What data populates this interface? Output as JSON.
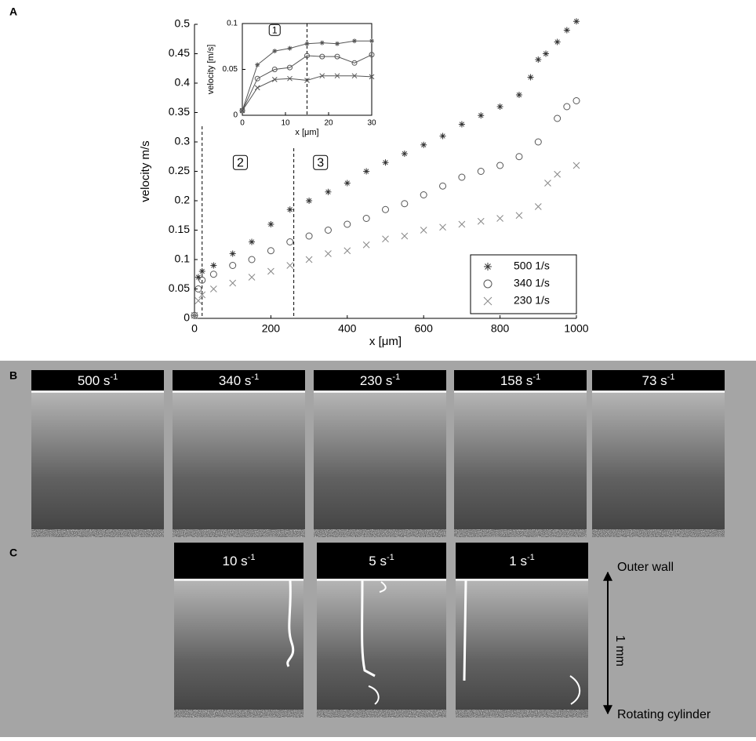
{
  "chart_data": [
    {
      "type": "scatter",
      "xlabel": "x [μm]",
      "ylabel": "velocity m/s",
      "xlim": [
        0,
        1000
      ],
      "ylim": [
        0,
        0.5
      ],
      "xticks": [
        0,
        200,
        400,
        600,
        800,
        1000
      ],
      "yticks": [
        0,
        0.05,
        0.1,
        0.15,
        0.2,
        0.25,
        0.3,
        0.35,
        0.4,
        0.45,
        0.5
      ],
      "grid": false,
      "legend": "lower right",
      "vlines": [
        20,
        260
      ],
      "annotations": [
        "2",
        "3"
      ],
      "series": [
        {
          "name": "500 1/s",
          "color": "#333333",
          "marker": "star",
          "x": [
            0,
            10,
            20,
            50,
            100,
            150,
            200,
            250,
            300,
            350,
            400,
            450,
            500,
            550,
            600,
            650,
            700,
            750,
            800,
            850,
            880,
            900,
            920,
            950,
            975,
            1000
          ],
          "values": [
            0.005,
            0.07,
            0.08,
            0.09,
            0.11,
            0.13,
            0.16,
            0.185,
            0.2,
            0.215,
            0.23,
            0.25,
            0.265,
            0.28,
            0.295,
            0.31,
            0.33,
            0.345,
            0.36,
            0.38,
            0.41,
            0.44,
            0.45,
            0.47,
            0.49,
            0.505
          ]
        },
        {
          "name": "340 1/s",
          "color": "#555555",
          "marker": "circle",
          "x": [
            0,
            10,
            20,
            50,
            100,
            150,
            200,
            250,
            300,
            350,
            400,
            450,
            500,
            550,
            600,
            650,
            700,
            750,
            800,
            850,
            900,
            950,
            975,
            1000
          ],
          "values": [
            0.005,
            0.05,
            0.065,
            0.075,
            0.09,
            0.1,
            0.115,
            0.13,
            0.14,
            0.15,
            0.16,
            0.17,
            0.185,
            0.195,
            0.21,
            0.225,
            0.24,
            0.25,
            0.26,
            0.275,
            0.3,
            0.34,
            0.36,
            0.37
          ]
        },
        {
          "name": "230 1/s",
          "color": "#888888",
          "marker": "cross",
          "x": [
            0,
            10,
            20,
            50,
            100,
            150,
            200,
            250,
            300,
            350,
            400,
            450,
            500,
            550,
            600,
            650,
            700,
            750,
            800,
            850,
            900,
            925,
            950,
            1000
          ],
          "values": [
            0.005,
            0.03,
            0.04,
            0.05,
            0.06,
            0.07,
            0.08,
            0.09,
            0.1,
            0.11,
            0.115,
            0.125,
            0.135,
            0.14,
            0.15,
            0.155,
            0.16,
            0.165,
            0.17,
            0.175,
            0.19,
            0.23,
            0.245,
            0.26
          ]
        }
      ]
    },
    {
      "type": "line",
      "xlabel": "x [μm]",
      "ylabel": "velocity [m/s]",
      "xlim": [
        0,
        30
      ],
      "ylim": [
        0,
        0.1
      ],
      "xticks": [
        0,
        10,
        20,
        30
      ],
      "yticks": [
        0,
        0.05,
        0.1
      ],
      "grid": false,
      "vlines": [
        15
      ],
      "annotations": [
        "1"
      ],
      "series": [
        {
          "name": "500 1/s",
          "color": "#555555",
          "marker": "star",
          "x": [
            0,
            3.5,
            7.5,
            11,
            15,
            18.5,
            22,
            26,
            30
          ],
          "values": [
            0.005,
            0.055,
            0.07,
            0.073,
            0.078,
            0.079,
            0.078,
            0.081,
            0.081
          ]
        },
        {
          "name": "340 1/s",
          "color": "#555555",
          "marker": "circle",
          "x": [
            0,
            3.5,
            7.5,
            11,
            15,
            18.5,
            22,
            26,
            30
          ],
          "values": [
            0.005,
            0.04,
            0.05,
            0.052,
            0.065,
            0.064,
            0.064,
            0.057,
            0.066
          ]
        },
        {
          "name": "230 1/s",
          "color": "#555555",
          "marker": "cross",
          "x": [
            0,
            3.5,
            7.5,
            11,
            15,
            18.5,
            22,
            26,
            30
          ],
          "values": [
            0.005,
            0.03,
            0.039,
            0.04,
            0.038,
            0.043,
            0.043,
            0.043,
            0.042
          ]
        }
      ]
    }
  ],
  "panels": {
    "A": {
      "letter": "A"
    },
    "B": {
      "letter": "B",
      "labels": [
        [
          "500 s",
          "-1"
        ],
        [
          "340 s",
          "-1"
        ],
        [
          "230 s",
          "-1"
        ],
        [
          "158 s",
          "-1"
        ],
        [
          "73 s",
          "-1"
        ]
      ]
    },
    "C": {
      "letter": "C",
      "labels": [
        [
          "10 s",
          "-1"
        ],
        [
          "5 s",
          "-1"
        ],
        [
          "1 s",
          "-1"
        ]
      ],
      "outer": "Outer wall",
      "scale": "1 mm",
      "inner": "Rotating cylinder"
    }
  }
}
